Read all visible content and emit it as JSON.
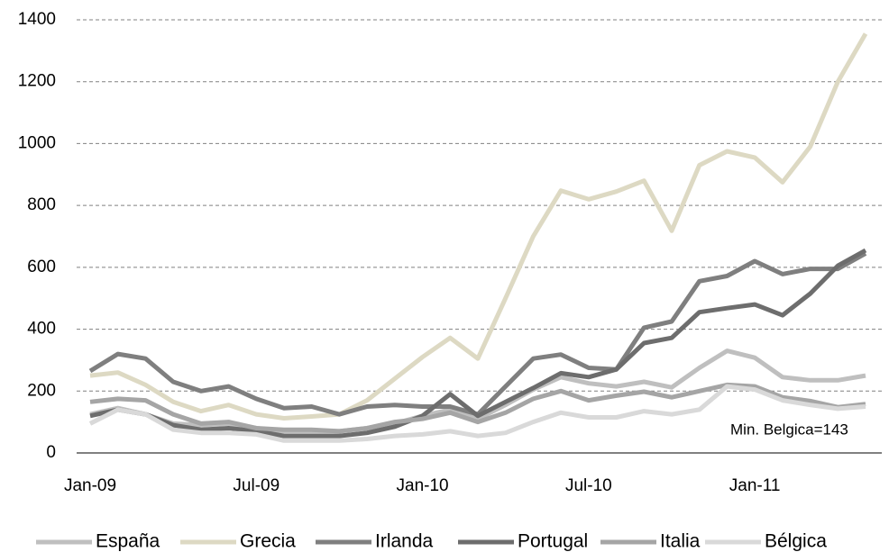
{
  "chart_data": {
    "type": "line",
    "categories": [
      "Jan-09",
      null,
      null,
      null,
      null,
      null,
      "Jul-09",
      null,
      null,
      null,
      null,
      null,
      "Jan-10",
      null,
      null,
      null,
      null,
      null,
      "Jul-10",
      null,
      null,
      null,
      null,
      null,
      "Jan-11",
      null,
      null,
      null,
      null
    ],
    "series": [
      {
        "name": "España",
        "color": "#bfbfbf",
        "values": [
          125,
          145,
          125,
          95,
          90,
          95,
          80,
          70,
          70,
          70,
          80,
          95,
          120,
          140,
          110,
          155,
          205,
          245,
          225,
          215,
          230,
          212,
          275,
          330,
          308,
          245,
          235,
          235,
          250
        ]
      },
      {
        "name": "Grecia",
        "color": "#ddd9c3",
        "values": [
          250,
          260,
          220,
          165,
          135,
          155,
          125,
          112,
          118,
          125,
          170,
          240,
          310,
          372,
          305,
          500,
          700,
          848,
          820,
          845,
          880,
          718,
          930,
          975,
          955,
          875,
          990,
          1200,
          1355
        ]
      },
      {
        "name": "Irlanda",
        "color": "#7f7f7f",
        "values": [
          265,
          320,
          305,
          230,
          200,
          215,
          175,
          145,
          150,
          125,
          150,
          155,
          150,
          150,
          125,
          215,
          305,
          318,
          275,
          270,
          405,
          425,
          555,
          572,
          620,
          578,
          595,
          595,
          645
        ]
      },
      {
        "name": "Portugal",
        "color": "#6d6d6d",
        "values": [
          120,
          140,
          125,
          90,
          75,
          80,
          70,
          55,
          55,
          55,
          65,
          85,
          120,
          190,
          120,
          165,
          210,
          258,
          245,
          270,
          355,
          372,
          455,
          468,
          480,
          445,
          515,
          605,
          655
        ]
      },
      {
        "name": "Italia",
        "color": "#a5a5a5",
        "values": [
          165,
          175,
          170,
          125,
          95,
          100,
          80,
          75,
          75,
          70,
          80,
          100,
          110,
          130,
          100,
          130,
          175,
          200,
          170,
          185,
          198,
          180,
          200,
          220,
          215,
          180,
          168,
          148,
          158
        ]
      },
      {
        "name": "Bélgica",
        "color": "#d9d9d9",
        "values": [
          95,
          140,
          125,
          75,
          65,
          65,
          60,
          40,
          40,
          40,
          45,
          55,
          60,
          70,
          55,
          65,
          100,
          130,
          115,
          115,
          135,
          125,
          140,
          215,
          205,
          170,
          155,
          143,
          150
        ]
      }
    ],
    "ylim": [
      0,
      1400
    ],
    "yticks": [
      0,
      200,
      400,
      600,
      800,
      1000,
      1200,
      1400
    ],
    "grid": true,
    "annotation": "Min. Belgica=143",
    "legend": "bottom"
  }
}
